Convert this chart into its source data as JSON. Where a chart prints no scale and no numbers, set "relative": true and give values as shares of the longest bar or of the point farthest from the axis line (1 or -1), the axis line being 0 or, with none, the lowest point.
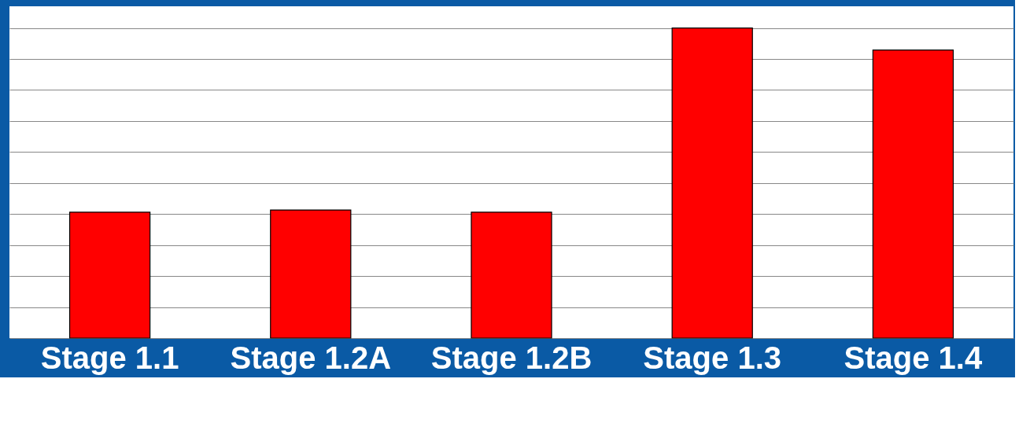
{
  "chart_data": {
    "type": "bar",
    "relative": true,
    "categories": [
      "Stage 1.1",
      "Stage 1.2A",
      "Stage 1.2B",
      "Stage 1.3",
      "Stage 1.4"
    ],
    "values": [
      0.406,
      0.413,
      0.406,
      1,
      0.929
    ],
    "color": "#ff0000",
    "grid": "y"
  }
}
